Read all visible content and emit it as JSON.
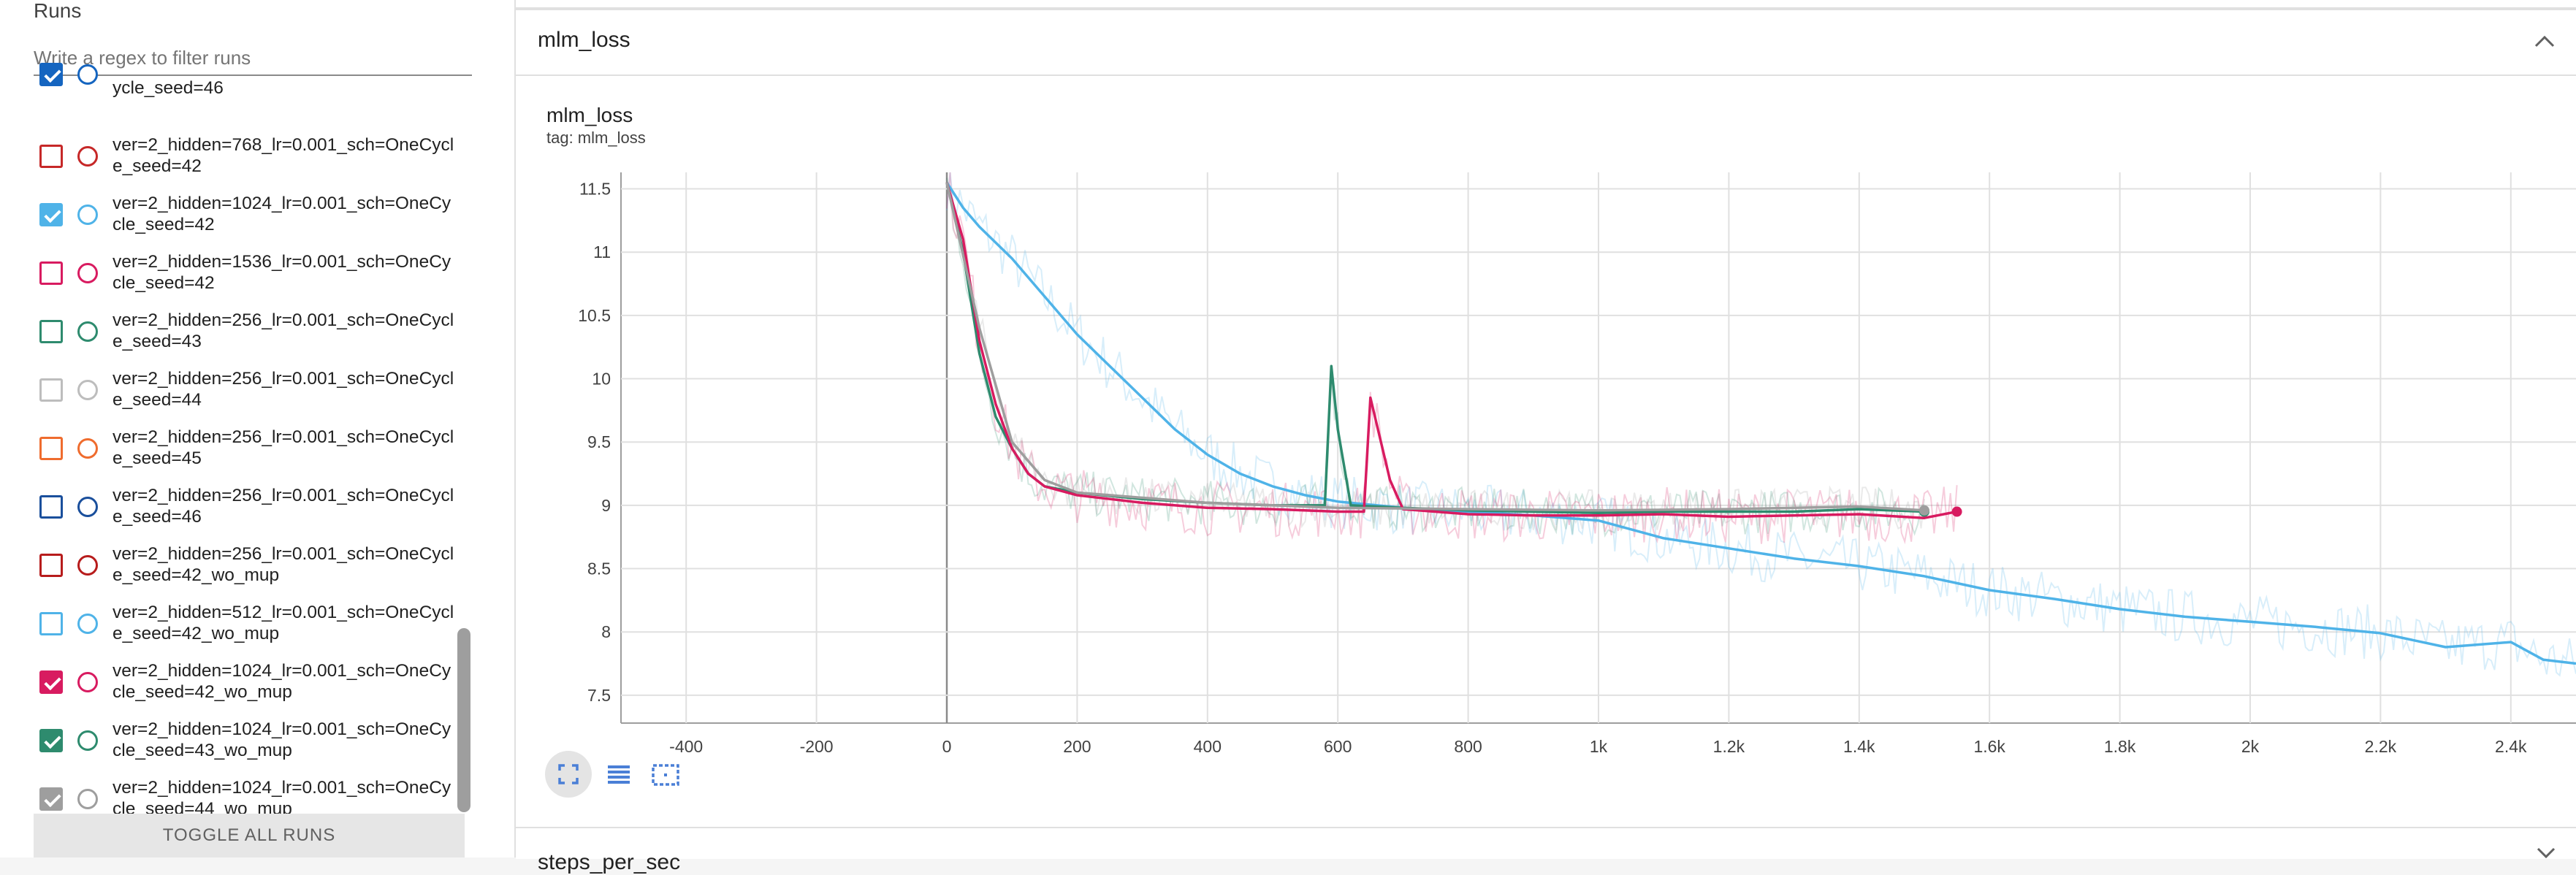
{
  "sidebar": {
    "title": "Runs",
    "filter_placeholder": "Write a regex to filter runs",
    "toggle_all_label": "TOGGLE ALL RUNS",
    "runs": [
      {
        "label": "ycle_seed=46",
        "checked": true,
        "color": "#1565c0"
      },
      {
        "label": "ver=2_hidden=768_lr=0.001_sch=OneCycle_seed=42",
        "checked": false,
        "color": "#c62828"
      },
      {
        "label": "ver=2_hidden=1024_lr=0.001_sch=OneCycle_seed=42",
        "checked": true,
        "color": "#4fb3e8"
      },
      {
        "label": "ver=2_hidden=1536_lr=0.001_sch=OneCycle_seed=42",
        "checked": false,
        "color": "#d81b60"
      },
      {
        "label": "ver=2_hidden=256_lr=0.001_sch=OneCycle_seed=43",
        "checked": false,
        "color": "#2e8b6e"
      },
      {
        "label": "ver=2_hidden=256_lr=0.001_sch=OneCycle_seed=44",
        "checked": false,
        "color": "#bdbdbd"
      },
      {
        "label": "ver=2_hidden=256_lr=0.001_sch=OneCycle_seed=45",
        "checked": false,
        "color": "#ef6c2e"
      },
      {
        "label": "ver=2_hidden=256_lr=0.001_sch=OneCycle_seed=46",
        "checked": false,
        "color": "#1a4f9c"
      },
      {
        "label": "ver=2_hidden=256_lr=0.001_sch=OneCycle_seed=42_wo_mup",
        "checked": false,
        "color": "#b71c1c"
      },
      {
        "label": "ver=2_hidden=512_lr=0.001_sch=OneCycle_seed=42_wo_mup",
        "checked": false,
        "color": "#4fb3e8"
      },
      {
        "label": "ver=2_hidden=1024_lr=0.001_sch=OneCycle_seed=42_wo_mup",
        "checked": true,
        "color": "#d81b60"
      },
      {
        "label": "ver=2_hidden=1024_lr=0.001_sch=OneCycle_seed=43_wo_mup",
        "checked": true,
        "color": "#2e8b6e"
      },
      {
        "label": "ver=2_hidden=1024_lr=0.001_sch=OneCycle_seed=44_wo_mup",
        "checked": true,
        "color": "#9e9e9e"
      }
    ]
  },
  "card": {
    "header_title": "mlm_loss",
    "next_card_title": "steps_per_sec",
    "icons": {
      "collapse": "chevron-up-icon",
      "fit": "fit-to-data-icon",
      "log": "log-scale-icon",
      "zoom": "zoom-selection-icon"
    }
  },
  "chart_data": {
    "type": "line",
    "title": "mlm_loss",
    "subtitle": "tag: mlm_loss",
    "xlim": [
      -500,
      2500
    ],
    "ylim": [
      7.28,
      11.63
    ],
    "x_ticks": [
      -400,
      -200,
      0,
      200,
      400,
      600,
      800,
      1000,
      1200,
      1400,
      1600,
      1800,
      2000,
      2200,
      2400
    ],
    "x_tick_labels": [
      "-400",
      "-200",
      "0",
      "200",
      "400",
      "600",
      "800",
      "1k",
      "1.2k",
      "1.4k",
      "1.6k",
      "1.8k",
      "2k",
      "2.2k",
      "2.4k"
    ],
    "y_ticks": [
      7.5,
      8,
      8.5,
      9,
      9.5,
      10,
      10.5,
      11,
      11.5
    ],
    "y_tick_labels": [
      "7.5",
      "8",
      "8.5",
      "9",
      "9.5",
      "10",
      "10.5",
      "11",
      "11.5"
    ],
    "grid": true,
    "series": [
      {
        "name": "ver=2_hidden=1024_lr=0.001_sch=OneCycle_seed=42",
        "color": "#4fb3e8",
        "x": [
          0,
          25,
          50,
          100,
          150,
          200,
          250,
          300,
          350,
          400,
          450,
          500,
          550,
          600,
          700,
          800,
          900,
          1000,
          1100,
          1200,
          1300,
          1400,
          1500,
          1600,
          1700,
          1800,
          1900,
          2000,
          2100,
          2200,
          2300,
          2400,
          2450,
          2500
        ],
        "y": [
          11.55,
          11.35,
          11.2,
          10.95,
          10.65,
          10.35,
          10.1,
          9.85,
          9.6,
          9.4,
          9.25,
          9.15,
          9.08,
          9.03,
          8.98,
          8.95,
          8.92,
          8.88,
          8.74,
          8.66,
          8.58,
          8.52,
          8.44,
          8.33,
          8.26,
          8.18,
          8.12,
          8.08,
          8.04,
          7.99,
          7.88,
          7.92,
          7.78,
          7.75
        ]
      },
      {
        "name": "ver=2_hidden=1024_lr=0.001_sch=OneCycle_seed=43_wo_mup",
        "color": "#2e8b6e",
        "x": [
          0,
          25,
          50,
          75,
          100,
          125,
          150,
          200,
          300,
          400,
          500,
          580,
          590,
          600,
          620,
          700,
          800,
          900,
          1000,
          1100,
          1200,
          1300,
          1400,
          1500
        ],
        "y": [
          11.55,
          11.0,
          10.2,
          9.7,
          9.45,
          9.25,
          9.15,
          9.1,
          9.05,
          9.02,
          9.0,
          9.0,
          10.1,
          9.6,
          9.0,
          8.98,
          8.96,
          8.95,
          8.94,
          8.95,
          8.95,
          8.95,
          8.97,
          8.95
        ]
      },
      {
        "name": "ver=2_hidden=1024_lr=0.001_sch=OneCycle_seed=42_wo_mup",
        "color": "#d81b60",
        "x": [
          0,
          25,
          50,
          75,
          100,
          125,
          150,
          200,
          300,
          400,
          500,
          600,
          640,
          650,
          680,
          700,
          800,
          900,
          1000,
          1100,
          1200,
          1300,
          1400,
          1500,
          1550
        ],
        "y": [
          11.55,
          11.1,
          10.3,
          9.8,
          9.45,
          9.25,
          9.15,
          9.08,
          9.02,
          8.98,
          8.97,
          8.95,
          8.95,
          9.85,
          9.2,
          8.97,
          8.93,
          8.92,
          8.92,
          8.93,
          8.91,
          8.92,
          8.93,
          8.9,
          8.95
        ]
      },
      {
        "name": "ver=2_hidden=1024_lr=0.001_sch=OneCycle_seed=44_wo_mup",
        "color": "#9e9e9e",
        "x": [
          0,
          50,
          100,
          150,
          200,
          400,
          600,
          800,
          1000,
          1200,
          1400,
          1500
        ],
        "y": [
          11.55,
          10.4,
          9.5,
          9.2,
          9.1,
          9.02,
          8.98,
          8.97,
          8.96,
          8.97,
          8.99,
          8.96
        ]
      }
    ]
  }
}
